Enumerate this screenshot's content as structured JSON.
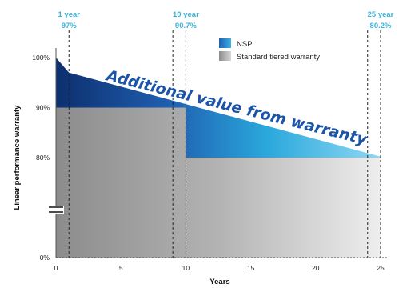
{
  "chart_data": {
    "type": "area",
    "title": "",
    "xlabel": "Years",
    "ylabel": "Linear performance warranty",
    "xlim": [
      0,
      25
    ],
    "x_ticks": [
      {
        "value": 0,
        "label": "0"
      },
      {
        "value": 5,
        "label": "5"
      },
      {
        "value": 10,
        "label": "10"
      },
      {
        "value": 15,
        "label": "15"
      },
      {
        "value": 20,
        "label": "20"
      },
      {
        "value": 25,
        "label": "25"
      }
    ],
    "y_ticks": [
      {
        "value": 100,
        "label": "100%"
      },
      {
        "value": 90,
        "label": "90%"
      },
      {
        "value": 80,
        "label": "80%"
      },
      {
        "value": 0,
        "label": "0%"
      }
    ],
    "y_axis_break": true,
    "series": [
      {
        "name": "NSP",
        "x": [
          0,
          1,
          25
        ],
        "y": [
          100,
          97,
          80.2
        ],
        "color": "#1f5fb0"
      },
      {
        "name": "Standard tiered warranty",
        "x": [
          0,
          10,
          10,
          25
        ],
        "y": [
          90,
          90,
          80,
          80
        ],
        "color": "#9a9a9a"
      }
    ],
    "annotations": [
      {
        "x": 1,
        "year_label": "1 year",
        "value_label": "97%"
      },
      {
        "x": 10,
        "year_label": "10 year",
        "value_label": "90.7%"
      },
      {
        "x": 25,
        "year_label": "25 year",
        "value_label": "80.2%"
      }
    ],
    "extra_guides_x": [
      9,
      24
    ],
    "overlay_text": "Additional value from warranty",
    "legend": {
      "placement": "top-center"
    }
  }
}
